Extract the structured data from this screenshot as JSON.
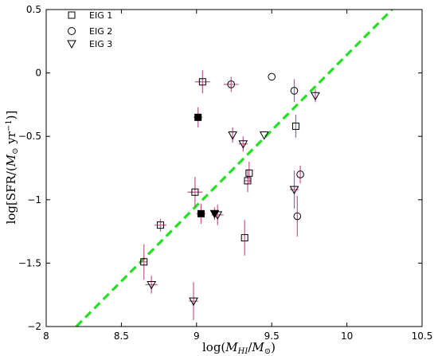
{
  "chart_data": {
    "type": "scatter",
    "xlabel": "log(M_HI/M_⊙)",
    "ylabel": "log[SFR/(M_⊙ yr⁻¹)]",
    "xlim": [
      8,
      10.5
    ],
    "ylim": [
      -2,
      0.5
    ],
    "x_ticks": [
      "8",
      "8.5",
      "9",
      "9.5",
      "10",
      "10.5"
    ],
    "y_ticks": [
      "0.5",
      "0",
      "−0.5",
      "−1",
      "−1.5",
      "−2"
    ],
    "grid": false,
    "legend_position": "top-left",
    "legend": [
      "EIG 1",
      "EIG 2",
      "EIG 3"
    ],
    "colors": {
      "errorbar": "#c0568f",
      "marker": "#000000",
      "fit_line": "#22e022"
    },
    "fit_line": {
      "x": [
        8.2,
        10.3
      ],
      "y": [
        -2.0,
        0.5
      ],
      "style": "dashed"
    },
    "series": [
      {
        "name": "EIG 1",
        "marker": "square",
        "points": [
          {
            "x": 9.04,
            "y": -0.07,
            "xerr": 0.05,
            "yerr": 0.09
          },
          {
            "x": 9.66,
            "y": -0.42,
            "xerr": 0.0,
            "yerr": 0.09
          },
          {
            "x": 8.99,
            "y": -0.94,
            "xerr": 0.05,
            "yerr": 0.12
          },
          {
            "x": 9.34,
            "y": -0.85,
            "xerr": 0.02,
            "yerr": 0.09
          },
          {
            "x": 9.35,
            "y": -0.79,
            "xerr": 0.0,
            "yerr": 0.09
          },
          {
            "x": 8.76,
            "y": -1.2,
            "xerr": 0.04,
            "yerr": 0.05
          },
          {
            "x": 9.32,
            "y": -1.3,
            "xerr": 0.0,
            "yerr": 0.14
          },
          {
            "x": 8.65,
            "y": -1.49,
            "xerr": 0.02,
            "yerr": 0.14
          }
        ]
      },
      {
        "name": "EIG 2",
        "marker": "circle",
        "points": [
          {
            "x": 9.23,
            "y": -0.09,
            "xerr": 0.05,
            "yerr": 0.06
          },
          {
            "x": 9.5,
            "y": -0.03,
            "xerr": 0.0,
            "yerr": 0.0
          },
          {
            "x": 9.65,
            "y": -0.14,
            "xerr": 0.0,
            "yerr": 0.09
          },
          {
            "x": 9.69,
            "y": -0.8,
            "xerr": 0.0,
            "yerr": 0.07
          },
          {
            "x": 9.67,
            "y": -1.13,
            "xerr": 0.0,
            "yerr": 0.16
          }
        ]
      },
      {
        "name": "EIG 3",
        "marker": "triangle-down",
        "points": [
          {
            "x": 9.24,
            "y": -0.49,
            "xerr": 0.0,
            "yerr": 0.06
          },
          {
            "x": 9.31,
            "y": -0.56,
            "xerr": 0.03,
            "yerr": 0.06
          },
          {
            "x": 9.45,
            "y": -0.49,
            "xerr": 0.0,
            "yerr": 0.0
          },
          {
            "x": 9.79,
            "y": -0.18,
            "xerr": 0.0,
            "yerr": 0.05
          },
          {
            "x": 9.65,
            "y": -0.92,
            "xerr": 0.03,
            "yerr": 0.15
          },
          {
            "x": 9.14,
            "y": -1.12,
            "xerr": 0.04,
            "yerr": 0.08
          },
          {
            "x": 8.7,
            "y": -1.67,
            "xerr": 0.04,
            "yerr": 0.07
          },
          {
            "x": 8.98,
            "y": -1.8,
            "xerr": 0.03,
            "yerr": 0.15
          }
        ]
      },
      {
        "marker": "filled-square",
        "points": [
          {
            "x": 9.01,
            "y": -0.35,
            "xerr": 0.03,
            "yerr": 0.08
          },
          {
            "x": 9.03,
            "y": -1.11,
            "xerr": 0.03,
            "yerr": 0.08
          }
        ]
      },
      {
        "marker": "filled-triangle-down",
        "points": [
          {
            "x": 9.12,
            "y": -1.11,
            "xerr": 0.0,
            "yerr": 0.05
          }
        ]
      }
    ]
  }
}
